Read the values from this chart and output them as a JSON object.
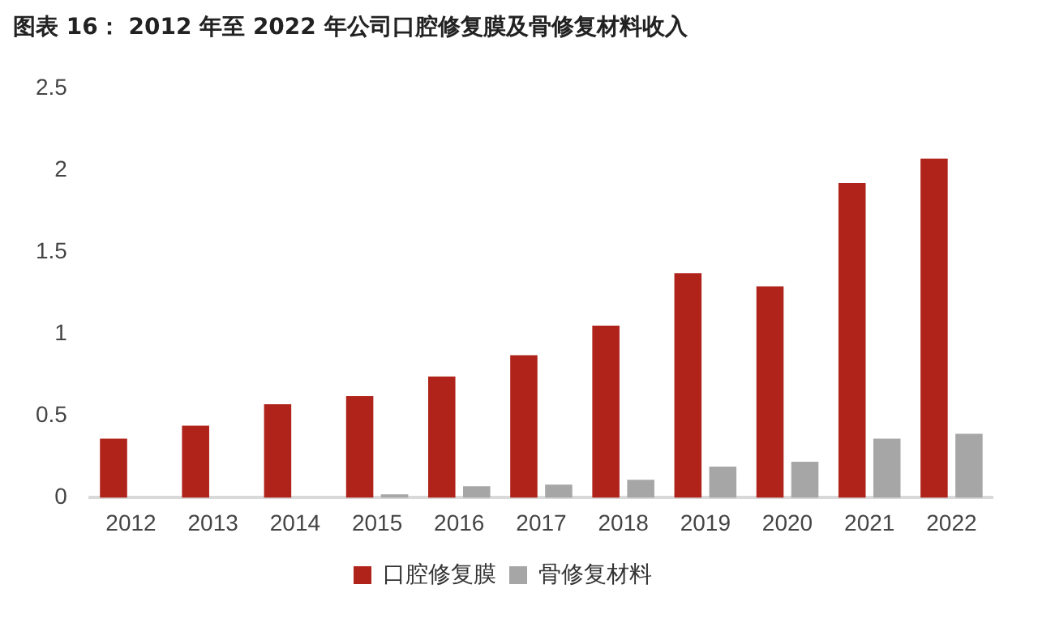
{
  "chart_data": {
    "type": "bar",
    "title": "图表 16：  2012 年至 2022 年公司口腔修复膜及骨修复材料收入",
    "categories": [
      "2012",
      "2013",
      "2014",
      "2015",
      "2016",
      "2017",
      "2018",
      "2019",
      "2020",
      "2021",
      "2022"
    ],
    "series": [
      {
        "name": "口腔修复膜",
        "color": "#b0231b",
        "values": [
          0.36,
          0.44,
          0.57,
          0.62,
          0.74,
          0.87,
          1.05,
          1.37,
          1.29,
          1.92,
          2.07
        ]
      },
      {
        "name": "骨修复材料",
        "color": "#a6a6a6",
        "values": [
          null,
          null,
          null,
          0.02,
          0.07,
          0.08,
          0.11,
          0.19,
          0.22,
          0.36,
          0.39
        ]
      }
    ],
    "ylim": [
      0,
      2.5
    ],
    "yticks": [
      0,
      0.5,
      1,
      1.5,
      2,
      2.5
    ],
    "grid": false,
    "legend": "bottom"
  }
}
